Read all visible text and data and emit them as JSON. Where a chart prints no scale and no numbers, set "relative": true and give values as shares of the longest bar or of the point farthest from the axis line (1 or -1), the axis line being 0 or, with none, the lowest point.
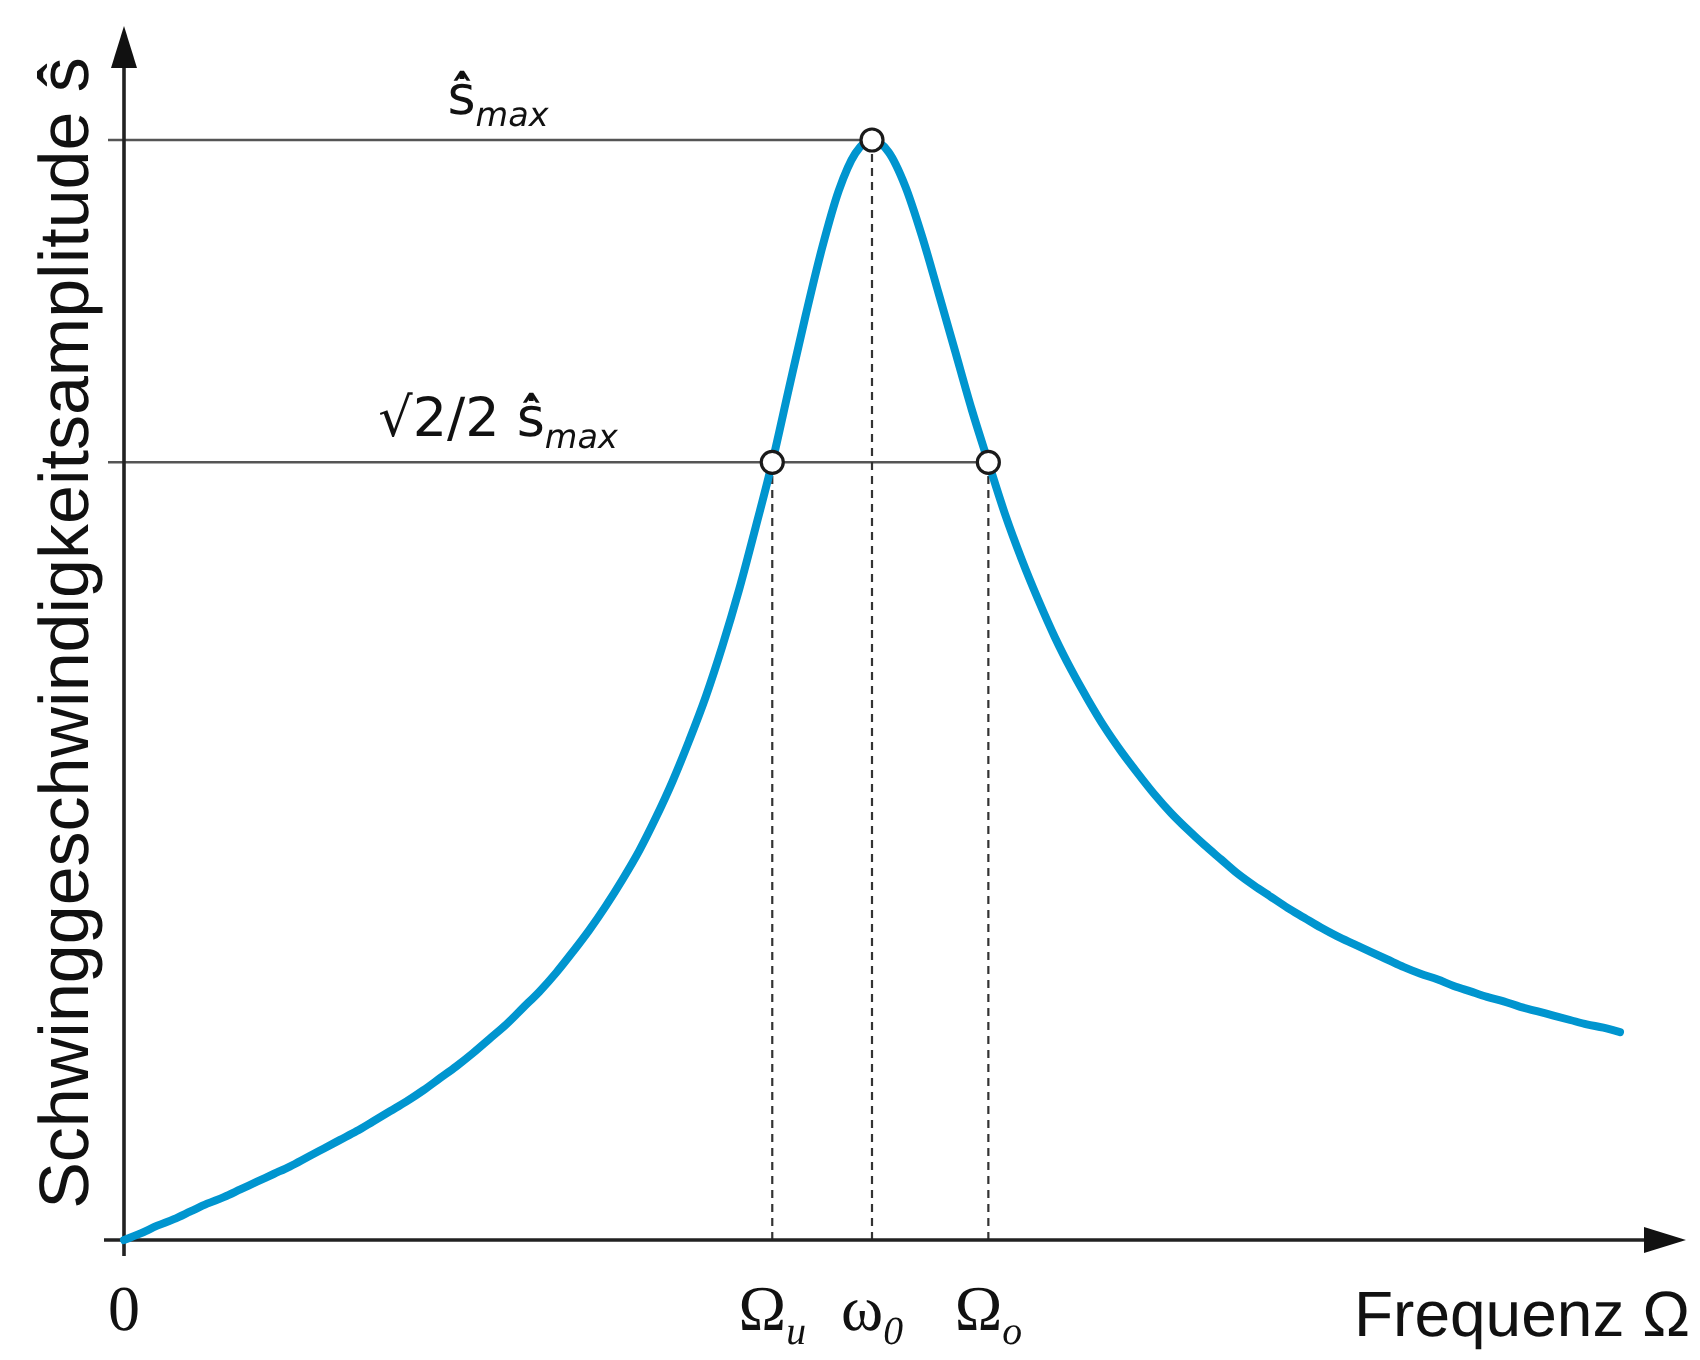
{
  "chart_data": {
    "type": "line",
    "relative": true,
    "xlabel": "Frequenz Ω",
    "ylabel": "Schwinggeschwindigkeitsamplitude ṡ̂",
    "categories": [
      "0",
      null,
      null,
      null,
      null,
      null,
      null,
      null,
      null,
      null,
      null,
      null,
      null,
      null,
      null,
      null,
      null,
      null,
      null,
      null,
      null,
      null,
      null,
      null,
      null,
      null,
      null,
      null,
      null,
      null,
      null,
      null,
      null,
      null,
      null,
      null,
      null,
      null,
      null,
      "Ω$_{u}$",
      null,
      null,
      null,
      null,
      null,
      "ω$_{0}$",
      null,
      null,
      null,
      null,
      null,
      null,
      "Ω$_{o}$",
      null,
      null,
      null,
      null,
      null,
      null,
      null,
      null,
      null,
      null,
      null,
      null,
      null,
      null,
      null,
      null,
      null,
      null,
      null,
      null,
      null,
      null,
      null,
      null,
      null,
      null,
      null,
      null,
      null,
      null,
      null,
      null,
      null,
      null,
      null,
      null,
      null,
      null
    ],
    "series": [
      {
        "color": "#0095cf",
        "values": [
          0,
          0.006,
          0.013,
          0.019,
          0.026,
          0.033,
          0.039,
          0.046,
          0.053,
          0.06,
          0.067,
          0.075,
          0.083,
          0.091,
          0.099,
          0.108,
          0.117,
          0.126,
          0.136,
          0.147,
          0.158,
          0.17,
          0.183,
          0.196,
          0.211,
          0.226,
          0.243,
          0.262,
          0.282,
          0.304,
          0.328,
          0.354,
          0.384,
          0.417,
          0.454,
          0.494,
          0.54,
          0.591,
          0.648,
          0.707,
          0.774,
          0.84,
          0.902,
          0.954,
          0.988,
          1,
          0.989,
          0.958,
          0.913,
          0.861,
          0.808,
          0.755,
          0.707,
          0.66,
          0.619,
          0.582,
          0.548,
          0.518,
          0.491,
          0.466,
          0.444,
          0.424,
          0.405,
          0.388,
          0.373,
          0.359,
          0.346,
          0.333,
          0.322,
          0.312,
          0.302,
          0.293,
          0.284,
          0.276,
          0.269,
          0.262,
          0.255,
          0.248,
          0.242,
          0.237,
          0.231,
          0.226,
          0.221,
          0.217,
          0.212,
          0.208,
          0.204,
          0.2,
          0.196,
          0.193,
          0.189
        ]
      },
      {
        "type": "scatter",
        "color": "#ffffff",
        "marker": "circle",
        "x": [
          "Ω$_{u}$",
          "ω$_{0}$",
          "Ω$_{o}$"
        ],
        "values": [
          0.707,
          1,
          0.707
        ]
      }
    ],
    "ref_lines": [
      {
        "axis": "y",
        "value": 1,
        "label": "ṡ̂$_{max}$",
        "color": "#555555"
      },
      {
        "axis": "y",
        "value": 0.707,
        "label": "√2/2 ṡ̂$_{max}$",
        "color": "#555555"
      },
      {
        "axis": "x",
        "value": "Ω$_{u}$",
        "line_style": "dashed",
        "color": "#333333"
      },
      {
        "axis": "x",
        "value": "ω$_{0}$",
        "line_style": "dashed",
        "color": "#333333"
      },
      {
        "axis": "x",
        "value": "Ω$_{o}$",
        "line_style": "dashed",
        "color": "#333333"
      }
    ]
  }
}
